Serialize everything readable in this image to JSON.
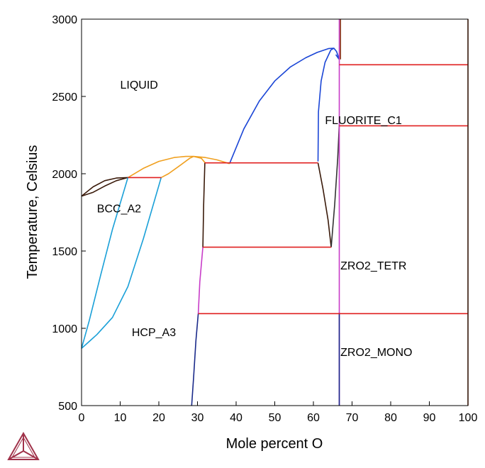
{
  "chart_data": {
    "type": "phase-diagram",
    "xlabel": "Mole percent O",
    "ylabel": "Temperature, Celsius",
    "xlim": [
      0,
      100
    ],
    "ylim": [
      500,
      3000
    ],
    "xticks": [
      "0",
      "10",
      "20",
      "30",
      "40",
      "50",
      "60",
      "70",
      "80",
      "90",
      "100"
    ],
    "yticks": [
      "500",
      "1000",
      "1500",
      "2000",
      "2500",
      "3000"
    ],
    "grid": false,
    "phase_labels": [
      {
        "text": "LIQUID",
        "x": 10,
        "y": 2550
      },
      {
        "text": "FLUORITE_C1",
        "x": 63,
        "y": 2320
      },
      {
        "text": "BCC_A2",
        "x": 4,
        "y": 1750
      },
      {
        "text": "ZRO2_TETR",
        "x": 67,
        "y": 1380
      },
      {
        "text": "HCP_A3",
        "x": 13,
        "y": 950
      },
      {
        "text": "ZRO2_MONO",
        "x": 67,
        "y": 820
      }
    ],
    "series": [
      {
        "color": "#1a45d6",
        "points": [
          [
            38.3,
            2065
          ],
          [
            42,
            2290
          ],
          [
            46,
            2470
          ],
          [
            50,
            2600
          ],
          [
            54,
            2690
          ],
          [
            58,
            2750
          ],
          [
            61,
            2785
          ],
          [
            64,
            2810
          ],
          [
            65.3,
            2812
          ],
          [
            66,
            2790
          ],
          [
            66.7,
            2740
          ]
        ]
      },
      {
        "color": "#1a45d6",
        "points": [
          [
            61.2,
            2080
          ],
          [
            61.3,
            2400
          ],
          [
            62,
            2600
          ],
          [
            63,
            2720
          ],
          [
            64.5,
            2800
          ],
          [
            65.3,
            2812
          ]
        ]
      },
      {
        "color": "#1a45d6",
        "points": [
          [
            65.8,
            2770
          ],
          [
            66.5,
            2745
          ],
          [
            66.7,
            2740
          ]
        ]
      },
      {
        "color": "#f0a020",
        "points": [
          [
            12,
            1975
          ],
          [
            16,
            2035
          ],
          [
            20,
            2080
          ],
          [
            24,
            2105
          ],
          [
            27,
            2112
          ],
          [
            29,
            2112
          ]
        ]
      },
      {
        "color": "#f0a020",
        "points": [
          [
            20.6,
            1975
          ],
          [
            22.5,
            2000
          ],
          [
            25,
            2045
          ],
          [
            28,
            2100
          ],
          [
            29,
            2112
          ]
        ]
      },
      {
        "color": "#f0a020",
        "points": [
          [
            29,
            2112
          ],
          [
            32,
            2105
          ],
          [
            35,
            2090
          ],
          [
            38.3,
            2065
          ]
        ]
      },
      {
        "color": "#f0a020",
        "points": [
          [
            29,
            2112
          ],
          [
            31,
            2100
          ],
          [
            32,
            2070
          ]
        ]
      },
      {
        "color": "#3a1a0a",
        "points": [
          [
            0,
            1855
          ],
          [
            3,
            1915
          ],
          [
            6,
            1955
          ],
          [
            9,
            1972
          ],
          [
            12,
            1975
          ]
        ]
      },
      {
        "color": "#3a1a0a",
        "points": [
          [
            0,
            1855
          ],
          [
            3,
            1880
          ],
          [
            6,
            1920
          ],
          [
            9,
            1955
          ],
          [
            12,
            1975
          ]
        ]
      },
      {
        "color": "#3a1a0a",
        "points": [
          [
            31.9,
            2070
          ],
          [
            31.6,
            1800
          ],
          [
            31.4,
            1520
          ]
        ]
      },
      {
        "color": "#3a1a0a",
        "points": [
          [
            61.2,
            2070
          ],
          [
            62.5,
            1900
          ],
          [
            63.8,
            1700
          ],
          [
            64.6,
            1525
          ]
        ]
      },
      {
        "color": "#333333",
        "points": [
          [
            64.6,
            1525
          ],
          [
            65.5,
            1800
          ],
          [
            66.3,
            2100
          ],
          [
            66.7,
            2320
          ]
        ]
      },
      {
        "color": "#1aa0d8",
        "points": [
          [
            0,
            870
          ],
          [
            2,
            1050
          ],
          [
            5,
            1350
          ],
          [
            8,
            1640
          ],
          [
            12,
            1975
          ]
        ]
      },
      {
        "color": "#1aa0d8",
        "points": [
          [
            0,
            870
          ],
          [
            4,
            960
          ],
          [
            8,
            1070
          ],
          [
            12,
            1270
          ],
          [
            16,
            1580
          ],
          [
            20.6,
            1975
          ]
        ]
      },
      {
        "color": "#1a2a8a",
        "points": [
          [
            28.5,
            500
          ],
          [
            29,
            680
          ],
          [
            29.6,
            920
          ],
          [
            30.2,
            1095
          ]
        ]
      },
      {
        "color": "#c83cc8",
        "points": [
          [
            30.2,
            1095
          ],
          [
            30.6,
            1300
          ],
          [
            31.4,
            1525
          ]
        ]
      },
      {
        "color": "#c83cc8",
        "points": [
          [
            66.7,
            500
          ],
          [
            66.7,
            3000
          ]
        ]
      },
      {
        "color": "#1a2a8a",
        "points": [
          [
            66.7,
            500
          ],
          [
            66.7,
            1100
          ]
        ]
      },
      {
        "color": "#8b3a1a",
        "points": [
          [
            67,
            2740
          ],
          [
            67,
            3000
          ]
        ]
      },
      {
        "color": "#8b3a1a",
        "points": [
          [
            100,
            500
          ],
          [
            100,
            3000
          ]
        ]
      },
      {
        "color": "#e02020",
        "points": [
          [
            12,
            1975
          ],
          [
            20.6,
            1975
          ]
        ]
      },
      {
        "color": "#e02020",
        "points": [
          [
            31.9,
            2070
          ],
          [
            61.2,
            2070
          ]
        ]
      },
      {
        "color": "#e02020",
        "points": [
          [
            31.4,
            1525
          ],
          [
            64.6,
            1525
          ]
        ]
      },
      {
        "color": "#e02020",
        "points": [
          [
            30.2,
            1095
          ],
          [
            100,
            1095
          ]
        ]
      },
      {
        "color": "#e02020",
        "points": [
          [
            66.7,
            2310
          ],
          [
            100,
            2310
          ]
        ]
      },
      {
        "color": "#e02020",
        "points": [
          [
            66.7,
            2705
          ],
          [
            100,
            2705
          ]
        ]
      }
    ]
  },
  "logo": {
    "name": "thermo-calc-logo",
    "color": "#a0324a"
  }
}
